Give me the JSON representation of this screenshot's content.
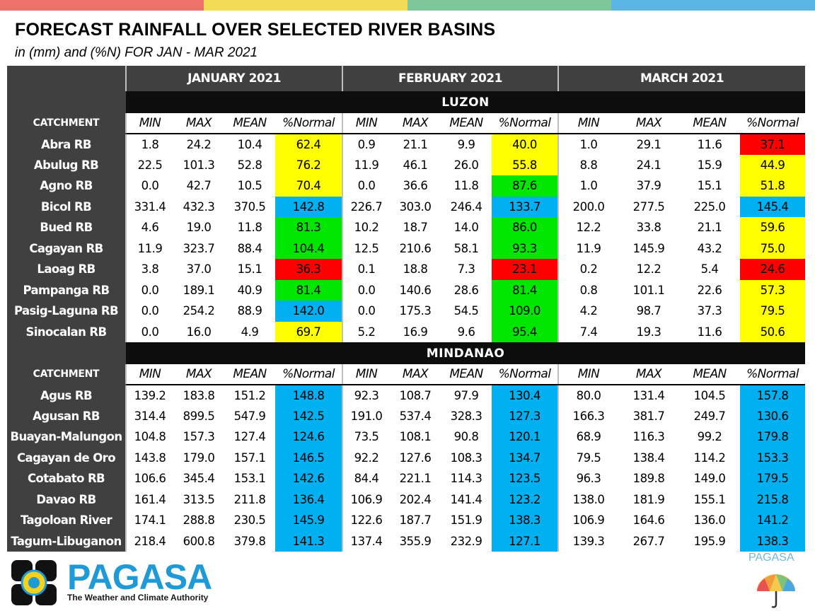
{
  "title": "FORECAST RAINFALL OVER SELECTED RIVER BASINS",
  "subtitle": "in (mm) and (%N) FOR  JAN - MAR 2021",
  "colors": {
    "top_bar": [
      "#f0706b",
      "#f3db58",
      "#7ec79a",
      "#5ab6e4"
    ],
    "header_gray": "#404040",
    "region_black": "#0d0d0d",
    "yellow": "#ffff00",
    "green": "#00e600",
    "red": "#ff0000",
    "blue": "#00b0f0",
    "brand_blue": "#1f9ad6"
  },
  "table": {
    "months": [
      "JANUARY 2021",
      "FEBRUARY 2021",
      "MARCH 2021"
    ],
    "catchment_label": "CATCHMENT",
    "column_headers": [
      "MIN",
      "MAX",
      "MEAN",
      "%Normal"
    ],
    "regions": [
      {
        "name": "LUZON",
        "rows": [
          {
            "name": "Abra RB",
            "cells": [
              [
                "1.8",
                "24.2",
                "10.4",
                "62.4"
              ],
              [
                "0.9",
                "21.1",
                "9.9",
                "40.0"
              ],
              [
                "1.0",
                "29.1",
                "11.6",
                "37.1"
              ]
            ],
            "colors": [
              "yellow",
              "yellow",
              "red"
            ]
          },
          {
            "name": "Abulug RB",
            "cells": [
              [
                "22.5",
                "101.3",
                "52.8",
                "76.2"
              ],
              [
                "11.9",
                "46.1",
                "26.0",
                "55.8"
              ],
              [
                "8.8",
                "24.1",
                "15.9",
                "44.9"
              ]
            ],
            "colors": [
              "yellow",
              "yellow",
              "yellow"
            ]
          },
          {
            "name": "Agno RB",
            "cells": [
              [
                "0.0",
                "42.7",
                "10.5",
                "70.4"
              ],
              [
                "0.0",
                "36.6",
                "11.8",
                "87.6"
              ],
              [
                "1.0",
                "37.9",
                "15.1",
                "51.8"
              ]
            ],
            "colors": [
              "yellow",
              "green",
              "yellow"
            ]
          },
          {
            "name": "Bicol RB",
            "cells": [
              [
                "331.4",
                "432.3",
                "370.5",
                "142.8"
              ],
              [
                "226.7",
                "303.0",
                "246.4",
                "133.7"
              ],
              [
                "200.0",
                "277.5",
                "225.0",
                "145.4"
              ]
            ],
            "colors": [
              "blue",
              "blue",
              "blue"
            ]
          },
          {
            "name": "Bued RB",
            "cells": [
              [
                "4.6",
                "19.0",
                "11.8",
                "81.3"
              ],
              [
                "10.2",
                "18.7",
                "14.0",
                "86.0"
              ],
              [
                "12.2",
                "33.8",
                "21.1",
                "59.6"
              ]
            ],
            "colors": [
              "green",
              "green",
              "yellow"
            ]
          },
          {
            "name": "Cagayan RB",
            "cells": [
              [
                "11.9",
                "323.7",
                "88.4",
                "104.4"
              ],
              [
                "12.5",
                "210.6",
                "58.1",
                "93.3"
              ],
              [
                "11.9",
                "145.9",
                "43.2",
                "75.0"
              ]
            ],
            "colors": [
              "green",
              "green",
              "yellow"
            ]
          },
          {
            "name": "Laoag RB",
            "cells": [
              [
                "3.8",
                "37.0",
                "15.1",
                "36.3"
              ],
              [
                "0.1",
                "18.8",
                "7.3",
                "23.1"
              ],
              [
                "0.2",
                "12.2",
                "5.4",
                "24.6"
              ]
            ],
            "colors": [
              "red",
              "red",
              "red"
            ]
          },
          {
            "name": "Pampanga RB",
            "cells": [
              [
                "0.0",
                "189.1",
                "40.9",
                "81.4"
              ],
              [
                "0.0",
                "140.6",
                "28.6",
                "81.4"
              ],
              [
                "0.8",
                "101.1",
                "22.6",
                "57.3"
              ]
            ],
            "colors": [
              "green",
              "green",
              "yellow"
            ]
          },
          {
            "name": "Pasig-Laguna RB",
            "cells": [
              [
                "0.0",
                "254.2",
                "88.9",
                "142.0"
              ],
              [
                "0.0",
                "175.3",
                "54.5",
                "109.0"
              ],
              [
                "4.2",
                "98.7",
                "37.3",
                "79.5"
              ]
            ],
            "colors": [
              "blue",
              "green",
              "yellow"
            ]
          },
          {
            "name": "Sinocalan RB",
            "cells": [
              [
                "0.0",
                "16.0",
                "4.9",
                "69.7"
              ],
              [
                "5.2",
                "16.9",
                "9.6",
                "95.4"
              ],
              [
                "7.4",
                "19.3",
                "11.6",
                "50.6"
              ]
            ],
            "colors": [
              "yellow",
              "green",
              "yellow"
            ]
          }
        ]
      },
      {
        "name": "MINDANAO",
        "rows": [
          {
            "name": "Agus RB",
            "cells": [
              [
                "139.2",
                "183.8",
                "151.2",
                "148.8"
              ],
              [
                "92.3",
                "108.7",
                "97.9",
                "130.4"
              ],
              [
                "80.0",
                "131.4",
                "104.5",
                "157.8"
              ]
            ],
            "colors": [
              "blue",
              "blue",
              "blue"
            ]
          },
          {
            "name": "Agusan RB",
            "cells": [
              [
                "314.4",
                "899.5",
                "547.9",
                "142.5"
              ],
              [
                "191.0",
                "537.4",
                "328.3",
                "127.3"
              ],
              [
                "166.3",
                "381.7",
                "249.7",
                "130.6"
              ]
            ],
            "colors": [
              "blue",
              "blue",
              "blue"
            ]
          },
          {
            "name": "Buayan-Malungon",
            "cells": [
              [
                "104.8",
                "157.3",
                "127.4",
                "124.6"
              ],
              [
                "73.5",
                "108.1",
                "90.8",
                "120.1"
              ],
              [
                "68.9",
                "116.3",
                "99.2",
                "179.8"
              ]
            ],
            "colors": [
              "blue",
              "blue",
              "blue"
            ]
          },
          {
            "name": "Cagayan de Oro",
            "cells": [
              [
                "143.8",
                "179.0",
                "157.1",
                "146.5"
              ],
              [
                "92.2",
                "127.6",
                "108.3",
                "134.7"
              ],
              [
                "79.5",
                "138.4",
                "114.2",
                "153.3"
              ]
            ],
            "colors": [
              "blue",
              "blue",
              "blue"
            ]
          },
          {
            "name": "Cotabato RB",
            "cells": [
              [
                "106.6",
                "345.4",
                "153.1",
                "142.6"
              ],
              [
                "84.4",
                "221.1",
                "114.3",
                "123.5"
              ],
              [
                "96.3",
                "189.8",
                "149.0",
                "179.5"
              ]
            ],
            "colors": [
              "blue",
              "blue",
              "blue"
            ]
          },
          {
            "name": "Davao RB",
            "cells": [
              [
                "161.4",
                "313.5",
                "211.8",
                "136.4"
              ],
              [
                "106.9",
                "202.4",
                "141.4",
                "123.2"
              ],
              [
                "138.0",
                "181.9",
                "155.1",
                "215.8"
              ]
            ],
            "colors": [
              "blue",
              "blue",
              "blue"
            ]
          },
          {
            "name": "Tagoloan River",
            "cells": [
              [
                "174.1",
                "288.8",
                "230.5",
                "145.9"
              ],
              [
                "122.6",
                "187.7",
                "151.9",
                "138.3"
              ],
              [
                "106.9",
                "164.6",
                "136.0",
                "141.2"
              ]
            ],
            "colors": [
              "blue",
              "blue",
              "blue"
            ]
          },
          {
            "name": "Tagum-Libuganon",
            "cells": [
              [
                "218.4",
                "600.8",
                "379.8",
                "141.3"
              ],
              [
                "137.4",
                "355.9",
                "232.9",
                "127.1"
              ],
              [
                "139.3",
                "267.7",
                "195.9",
                "138.3"
              ]
            ],
            "colors": [
              "blue",
              "blue",
              "blue"
            ]
          }
        ]
      }
    ]
  },
  "footer": {
    "logo_text": "PAGASA",
    "tagline": "The Weather and Climate Authority",
    "corner_text": "PAGASA",
    "logo_icon": "pagasa-logo",
    "corner_icon": "umbrella-icon"
  }
}
